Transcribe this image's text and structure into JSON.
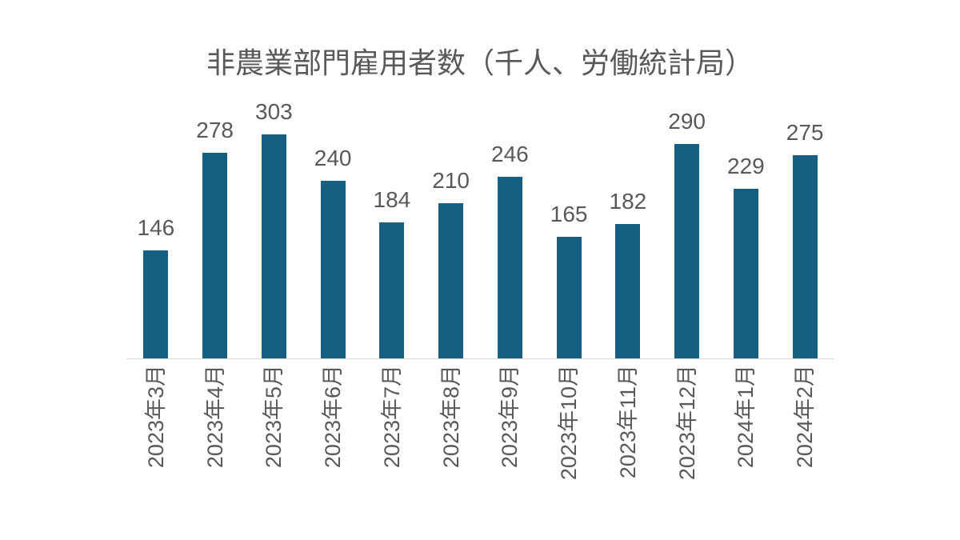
{
  "chart_data": {
    "type": "bar",
    "title": "非農業部門雇用者数（千人、労働統計局）",
    "categories": [
      "2023年3月",
      "2023年4月",
      "2023年5月",
      "2023年6月",
      "2023年7月",
      "2023年8月",
      "2023年9月",
      "2023年10月",
      "2023年11月",
      "2023年12月",
      "2024年1月",
      "2024年2月"
    ],
    "values": [
      146,
      278,
      303,
      240,
      184,
      210,
      246,
      165,
      182,
      290,
      229,
      275
    ],
    "xlabel": "",
    "ylabel": "",
    "ylim": [
      0,
      350
    ],
    "grid": false,
    "legend_position": "none",
    "data_labels_shown": true,
    "x_tick_rotation_deg": -90,
    "colors": {
      "bar": "#156082",
      "label_text": "#595959",
      "title_text": "#595959",
      "axis_line": "#d9d9d9",
      "background": "#ffffff"
    }
  }
}
